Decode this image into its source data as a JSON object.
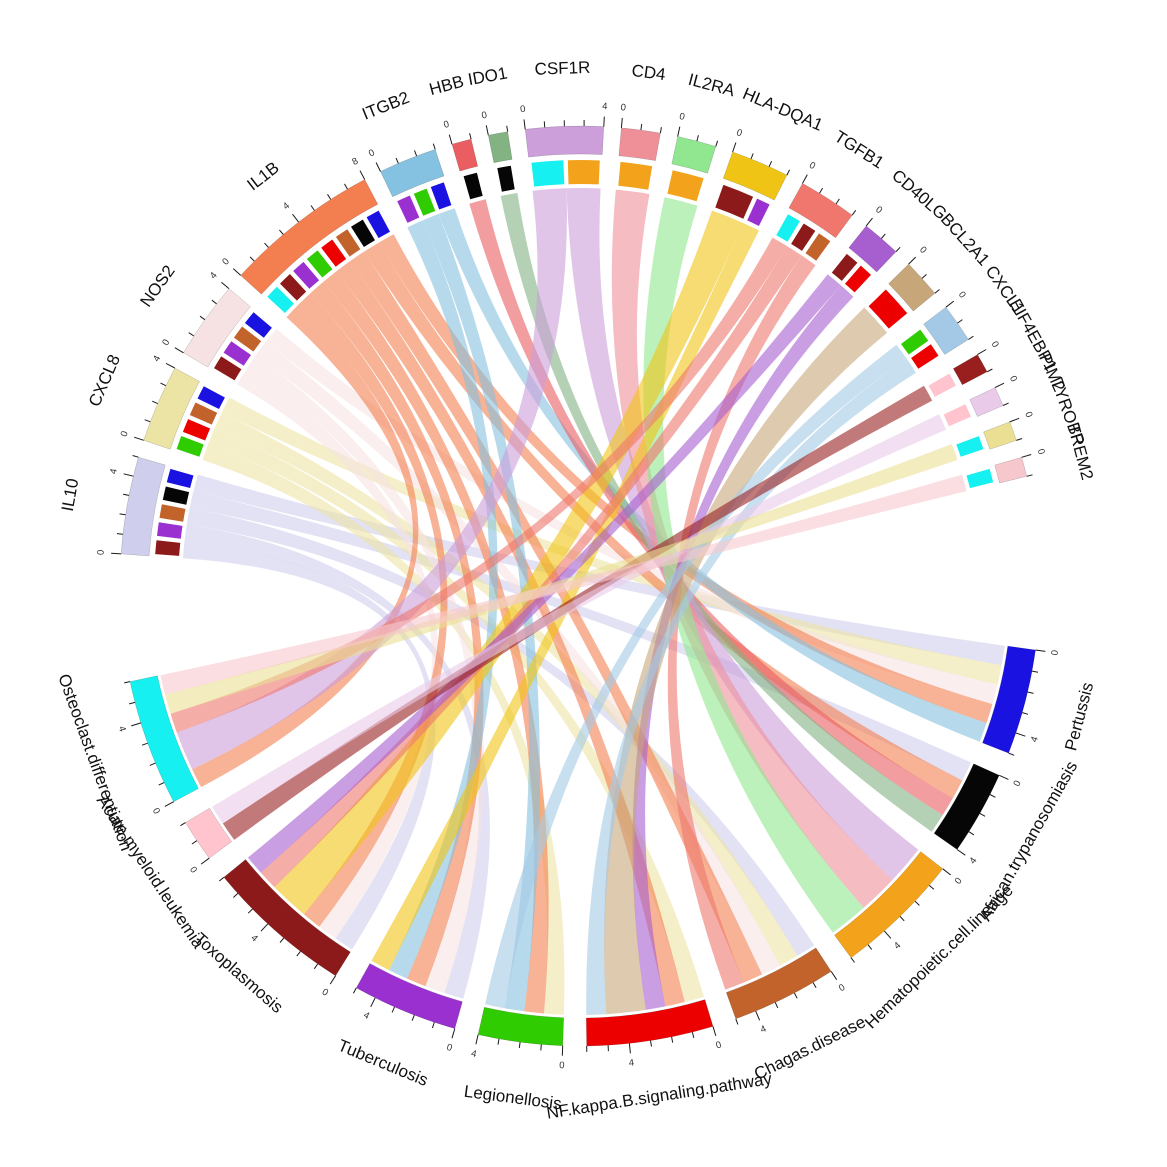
{
  "figure": {
    "background": "#ffffff",
    "title": ""
  },
  "chart_data": {
    "type": "chord",
    "description": "Circos chord diagram linking differentially expressed genes (upper semicircle) to KEGG pathways (lower semicircle). Sector size equals total link weight; axes tick every 1 unit with labels every 4 units.",
    "axis": {
      "tick_interval": 1,
      "label_interval": 4,
      "visible_tick_labels": [
        0,
        4,
        8
      ]
    },
    "genes": [
      {
        "name": "IL10",
        "color": "#cfcfed"
      },
      {
        "name": "CXCL8",
        "color": "#ece4a4"
      },
      {
        "name": "NOS2",
        "color": "#f6e2e2"
      },
      {
        "name": "IL1B",
        "color": "#f37e4f"
      },
      {
        "name": "ITGB2",
        "color": "#85c1e0"
      },
      {
        "name": "HBB",
        "color": "#ea5e62"
      },
      {
        "name": "IDO1",
        "color": "#83b283"
      },
      {
        "name": "CSF1R",
        "color": "#cc9fdb"
      },
      {
        "name": "CD4",
        "color": "#ef9099"
      },
      {
        "name": "IL2RA",
        "color": "#90e790"
      },
      {
        "name": "HLA-DQA1",
        "color": "#f0c414"
      },
      {
        "name": "TGFB1",
        "color": "#ef776d"
      },
      {
        "name": "CD40LG",
        "color": "#a75ecf"
      },
      {
        "name": "BCL2A1",
        "color": "#c7a67a"
      },
      {
        "name": "CXCL1",
        "color": "#a3c9e6"
      },
      {
        "name": "EIF4EBP1",
        "color": "#991f1f"
      },
      {
        "name": "PIM2",
        "color": "#e9cbe9"
      },
      {
        "name": "TYROBP",
        "color": "#eadf93"
      },
      {
        "name": "TREM2",
        "color": "#f6c8cd"
      }
    ],
    "pathways": [
      {
        "name": "Pertussis",
        "color": "#1a12e0"
      },
      {
        "name": "African.trypanosomiasis",
        "color": "#060606"
      },
      {
        "name": "Hematopoietic.cell.lineage",
        "color": "#f2a31b"
      },
      {
        "name": "Chagas.disease",
        "color": "#c2632c"
      },
      {
        "name": "NF.kappa.B.signaling.pathway",
        "color": "#ec0000"
      },
      {
        "name": "Legionellosis",
        "color": "#2ecc00"
      },
      {
        "name": "Tuberculosis",
        "color": "#9a30d0"
      },
      {
        "name": "Toxoplasmosis",
        "color": "#8c1a1a"
      },
      {
        "name": "Acute.myeloid.leukemia",
        "color": "#ffc4cd"
      },
      {
        "name": "Osteoclast.differentiation",
        "color": "#16f0f0"
      }
    ],
    "links": [
      {
        "gene": "IL10",
        "pathway": "Toxoplasmosis",
        "value": 1
      },
      {
        "gene": "IL10",
        "pathway": "Tuberculosis",
        "value": 1
      },
      {
        "gene": "IL10",
        "pathway": "Chagas.disease",
        "value": 1
      },
      {
        "gene": "IL10",
        "pathway": "African.trypanosomiasis",
        "value": 1
      },
      {
        "gene": "IL10",
        "pathway": "Pertussis",
        "value": 1
      },
      {
        "gene": "CXCL8",
        "pathway": "Legionellosis",
        "value": 1
      },
      {
        "gene": "CXCL8",
        "pathway": "NF.kappa.B.signaling.pathway",
        "value": 1
      },
      {
        "gene": "CXCL8",
        "pathway": "Chagas.disease",
        "value": 1
      },
      {
        "gene": "CXCL8",
        "pathway": "Pertussis",
        "value": 1
      },
      {
        "gene": "NOS2",
        "pathway": "Toxoplasmosis",
        "value": 1
      },
      {
        "gene": "NOS2",
        "pathway": "Tuberculosis",
        "value": 1
      },
      {
        "gene": "NOS2",
        "pathway": "Chagas.disease",
        "value": 1
      },
      {
        "gene": "NOS2",
        "pathway": "Pertussis",
        "value": 1
      },
      {
        "gene": "IL1B",
        "pathway": "Osteoclast.differentiation",
        "value": 1
      },
      {
        "gene": "IL1B",
        "pathway": "Toxoplasmosis",
        "value": 1
      },
      {
        "gene": "IL1B",
        "pathway": "Tuberculosis",
        "value": 1
      },
      {
        "gene": "IL1B",
        "pathway": "Legionellosis",
        "value": 1
      },
      {
        "gene": "IL1B",
        "pathway": "NF.kappa.B.signaling.pathway",
        "value": 1
      },
      {
        "gene": "IL1B",
        "pathway": "Chagas.disease",
        "value": 1
      },
      {
        "gene": "IL1B",
        "pathway": "African.trypanosomiasis",
        "value": 1
      },
      {
        "gene": "IL1B",
        "pathway": "Pertussis",
        "value": 1
      },
      {
        "gene": "ITGB2",
        "pathway": "Tuberculosis",
        "value": 1
      },
      {
        "gene": "ITGB2",
        "pathway": "Legionellosis",
        "value": 1
      },
      {
        "gene": "ITGB2",
        "pathway": "Pertussis",
        "value": 1
      },
      {
        "gene": "HBB",
        "pathway": "African.trypanosomiasis",
        "value": 1
      },
      {
        "gene": "IDO1",
        "pathway": "African.trypanosomiasis",
        "value": 1
      },
      {
        "gene": "CSF1R",
        "pathway": "Osteoclast.differentiation",
        "value": 2
      },
      {
        "gene": "CSF1R",
        "pathway": "Hematopoietic.cell.lineage",
        "value": 2
      },
      {
        "gene": "CD4",
        "pathway": "Hematopoietic.cell.lineage",
        "value": 2
      },
      {
        "gene": "IL2RA",
        "pathway": "Hematopoietic.cell.lineage",
        "value": 2
      },
      {
        "gene": "HLA-DQA1",
        "pathway": "Toxoplasmosis",
        "value": 2
      },
      {
        "gene": "HLA-DQA1",
        "pathway": "Tuberculosis",
        "value": 1
      },
      {
        "gene": "TGFB1",
        "pathway": "Osteoclast.differentiation",
        "value": 1
      },
      {
        "gene": "TGFB1",
        "pathway": "Toxoplasmosis",
        "value": 1
      },
      {
        "gene": "TGFB1",
        "pathway": "Chagas.disease",
        "value": 1
      },
      {
        "gene": "CD40LG",
        "pathway": "Toxoplasmosis",
        "value": 1
      },
      {
        "gene": "CD40LG",
        "pathway": "NF.kappa.B.signaling.pathway",
        "value": 1
      },
      {
        "gene": "BCL2A1",
        "pathway": "NF.kappa.B.signaling.pathway",
        "value": 2
      },
      {
        "gene": "CXCL1",
        "pathway": "Legionellosis",
        "value": 1
      },
      {
        "gene": "CXCL1",
        "pathway": "NF.kappa.B.signaling.pathway",
        "value": 1
      },
      {
        "gene": "EIF4EBP1",
        "pathway": "Acute.myeloid.leukemia",
        "value": 1
      },
      {
        "gene": "PIM2",
        "pathway": "Acute.myeloid.leukemia",
        "value": 1
      },
      {
        "gene": "TYROBP",
        "pathway": "Osteoclast.differentiation",
        "value": 1
      },
      {
        "gene": "TREM2",
        "pathway": "Osteoclast.differentiation",
        "value": 1
      }
    ]
  }
}
